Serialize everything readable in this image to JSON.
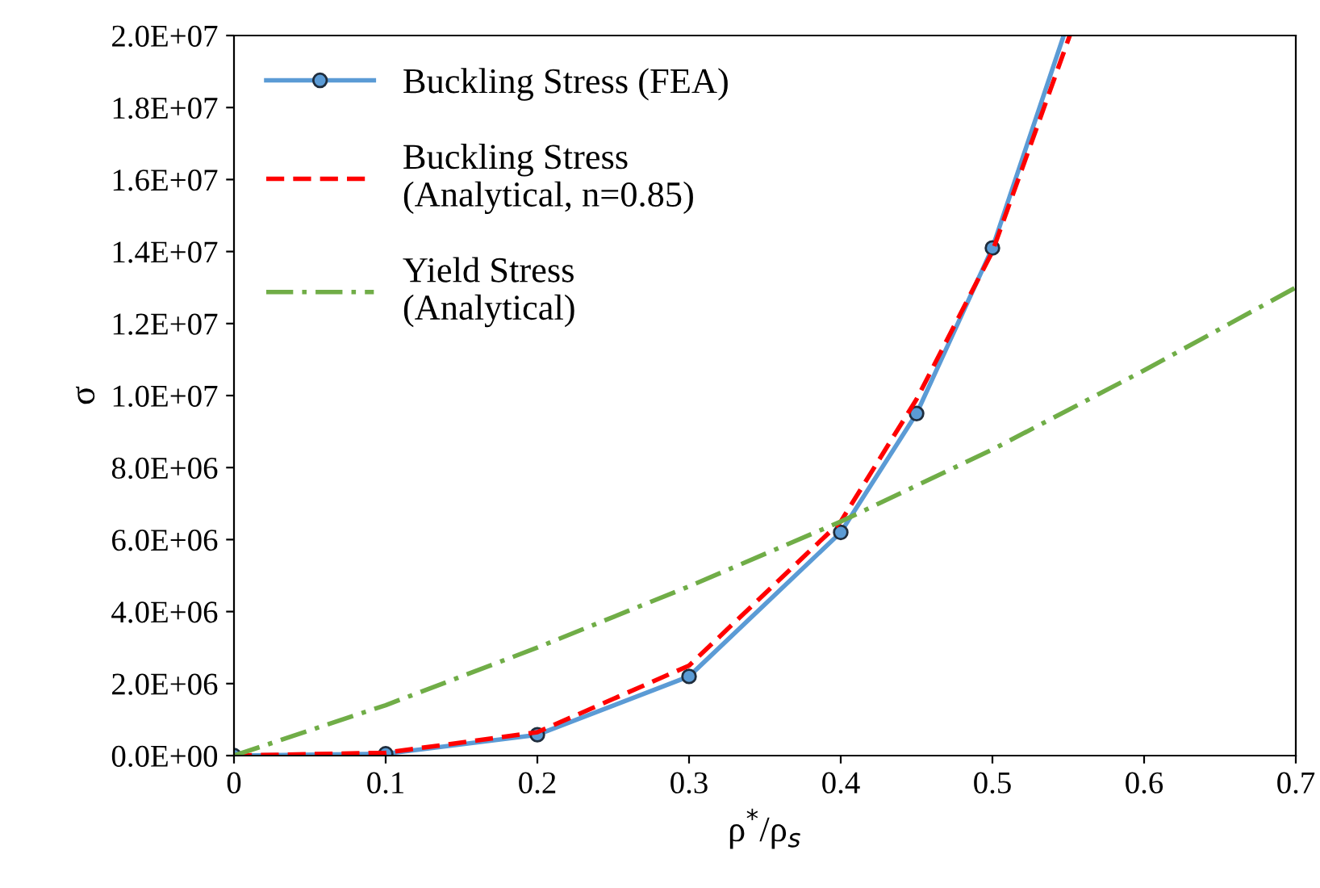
{
  "chart_data": {
    "type": "line",
    "xlabel": "ρ$^{*}$/ρ$_{s}$",
    "ylabel": "σ",
    "xlim": [
      0,
      0.7
    ],
    "xticks": [
      {
        "value": 0,
        "label": "0"
      },
      0.1,
      0.2,
      0.3,
      0.4,
      0.5,
      0.6,
      0.7
    ],
    "ylim": [
      0,
      20000000
    ],
    "yticks": [
      {
        "value": 0,
        "label": "0.0E+00"
      },
      {
        "value": 2000000,
        "label": "2.0E+06"
      },
      {
        "value": 4000000,
        "label": "4.0E+06"
      },
      {
        "value": 6000000,
        "label": "6.0E+06"
      },
      {
        "value": 8000000,
        "label": "8.0E+06"
      },
      {
        "value": 10000000,
        "label": "1.0E+07"
      },
      {
        "value": 12000000,
        "label": "1.2E+07"
      },
      {
        "value": 14000000,
        "label": "1.4E+07"
      },
      {
        "value": 16000000,
        "label": "1.6E+07"
      },
      {
        "value": 18000000,
        "label": "1.8E+07"
      },
      {
        "value": 20000000,
        "label": "2.0E+07"
      }
    ],
    "grid": false,
    "legend": "top left",
    "series": [
      {
        "name": "Buckling Stress (FEA)",
        "color": "#5b9bd5",
        "marker": "circle",
        "line_style": "solid",
        "x": [
          0,
          0.1,
          0.2,
          0.3,
          0.4,
          0.45,
          0.5,
          0.547
        ],
        "values": [
          0,
          50000,
          580000,
          2200000,
          6200000,
          9500000,
          14100000,
          20000000
        ]
      },
      {
        "name": "Buckling Stress\n(Analytical, n=0.85)",
        "color": "#ff0000",
        "marker": "none",
        "line_style": "dashed",
        "x": [
          0,
          0.1,
          0.2,
          0.3,
          0.4,
          0.45,
          0.5,
          0.551
        ],
        "values": [
          0,
          80000,
          650000,
          2500000,
          6500000,
          9900000,
          14000000,
          20000000
        ]
      },
      {
        "name": "Yield Stress\n(Analytical)",
        "color": "#70ad47",
        "marker": "none",
        "line_style": "dashdot",
        "x": [
          0,
          0.1,
          0.2,
          0.3,
          0.4,
          0.5,
          0.6,
          0.7
        ],
        "values": [
          0,
          1400000,
          3000000,
          4700000,
          6500000,
          8500000,
          10700000,
          13000000
        ]
      }
    ]
  }
}
